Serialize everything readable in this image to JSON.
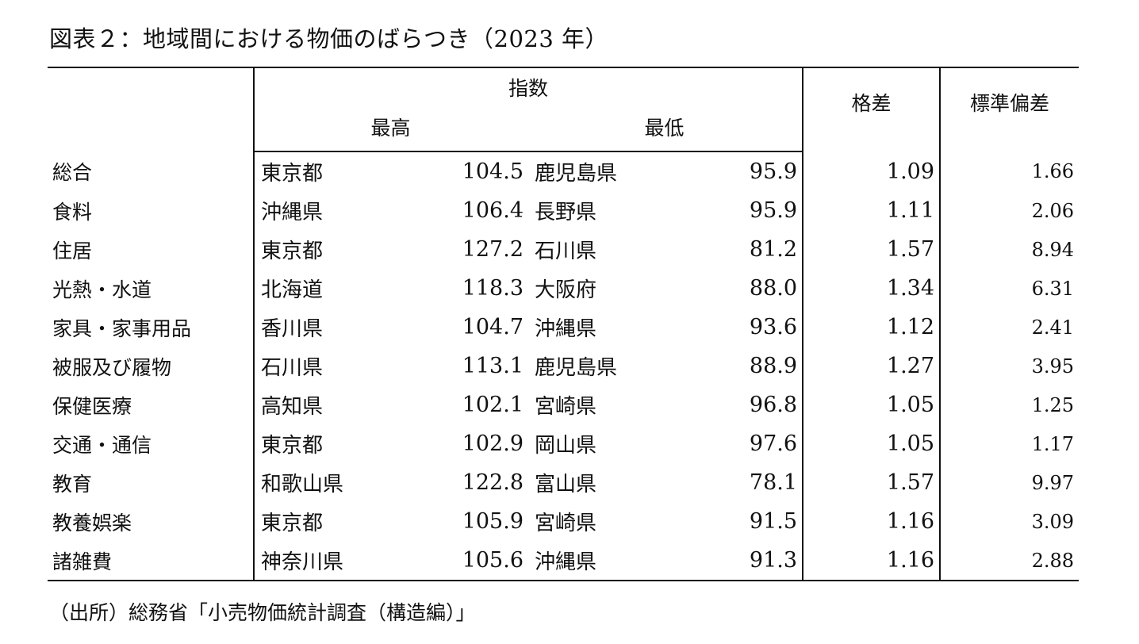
{
  "title": "図表２：地域間における物価のばらつき（2023 年）",
  "headers": {
    "index": "指数",
    "highest": "最高",
    "lowest": "最低",
    "ratio": "格差",
    "std_dev": "標準偏差"
  },
  "rows": [
    {
      "category": "総合",
      "high_pref": "東京都",
      "high_value": "104.5",
      "low_pref": "鹿児島県",
      "low_value": "95.9",
      "ratio": "1.09",
      "std": "1.66"
    },
    {
      "category": "食料",
      "high_pref": "沖縄県",
      "high_value": "106.4",
      "low_pref": "長野県",
      "low_value": "95.9",
      "ratio": "1.11",
      "std": "2.06"
    },
    {
      "category": "住居",
      "high_pref": "東京都",
      "high_value": "127.2",
      "low_pref": "石川県",
      "low_value": "81.2",
      "ratio": "1.57",
      "std": "8.94"
    },
    {
      "category": "光熱・水道",
      "high_pref": "北海道",
      "high_value": "118.3",
      "low_pref": "大阪府",
      "low_value": "88.0",
      "ratio": "1.34",
      "std": "6.31"
    },
    {
      "category": "家具・家事用品",
      "high_pref": "香川県",
      "high_value": "104.7",
      "low_pref": "沖縄県",
      "low_value": "93.6",
      "ratio": "1.12",
      "std": "2.41"
    },
    {
      "category": "被服及び履物",
      "high_pref": "石川県",
      "high_value": "113.1",
      "low_pref": "鹿児島県",
      "low_value": "88.9",
      "ratio": "1.27",
      "std": "3.95"
    },
    {
      "category": "保健医療",
      "high_pref": "高知県",
      "high_value": "102.1",
      "low_pref": "宮崎県",
      "low_value": "96.8",
      "ratio": "1.05",
      "std": "1.25"
    },
    {
      "category": "交通・通信",
      "high_pref": "東京都",
      "high_value": "102.9",
      "low_pref": "岡山県",
      "low_value": "97.6",
      "ratio": "1.05",
      "std": "1.17"
    },
    {
      "category": "教育",
      "high_pref": "和歌山県",
      "high_value": "122.8",
      "low_pref": "富山県",
      "low_value": "78.1",
      "ratio": "1.57",
      "std": "9.97"
    },
    {
      "category": "教養娯楽",
      "high_pref": "東京都",
      "high_value": "105.9",
      "low_pref": "宮崎県",
      "low_value": "91.5",
      "ratio": "1.16",
      "std": "3.09"
    },
    {
      "category": "諸雑費",
      "high_pref": "神奈川県",
      "high_value": "105.6",
      "low_pref": "沖縄県",
      "low_value": "91.3",
      "ratio": "1.16",
      "std": "2.88"
    }
  ],
  "source_note": "（出所）総務省「小売物価統計調査（構造編）」"
}
